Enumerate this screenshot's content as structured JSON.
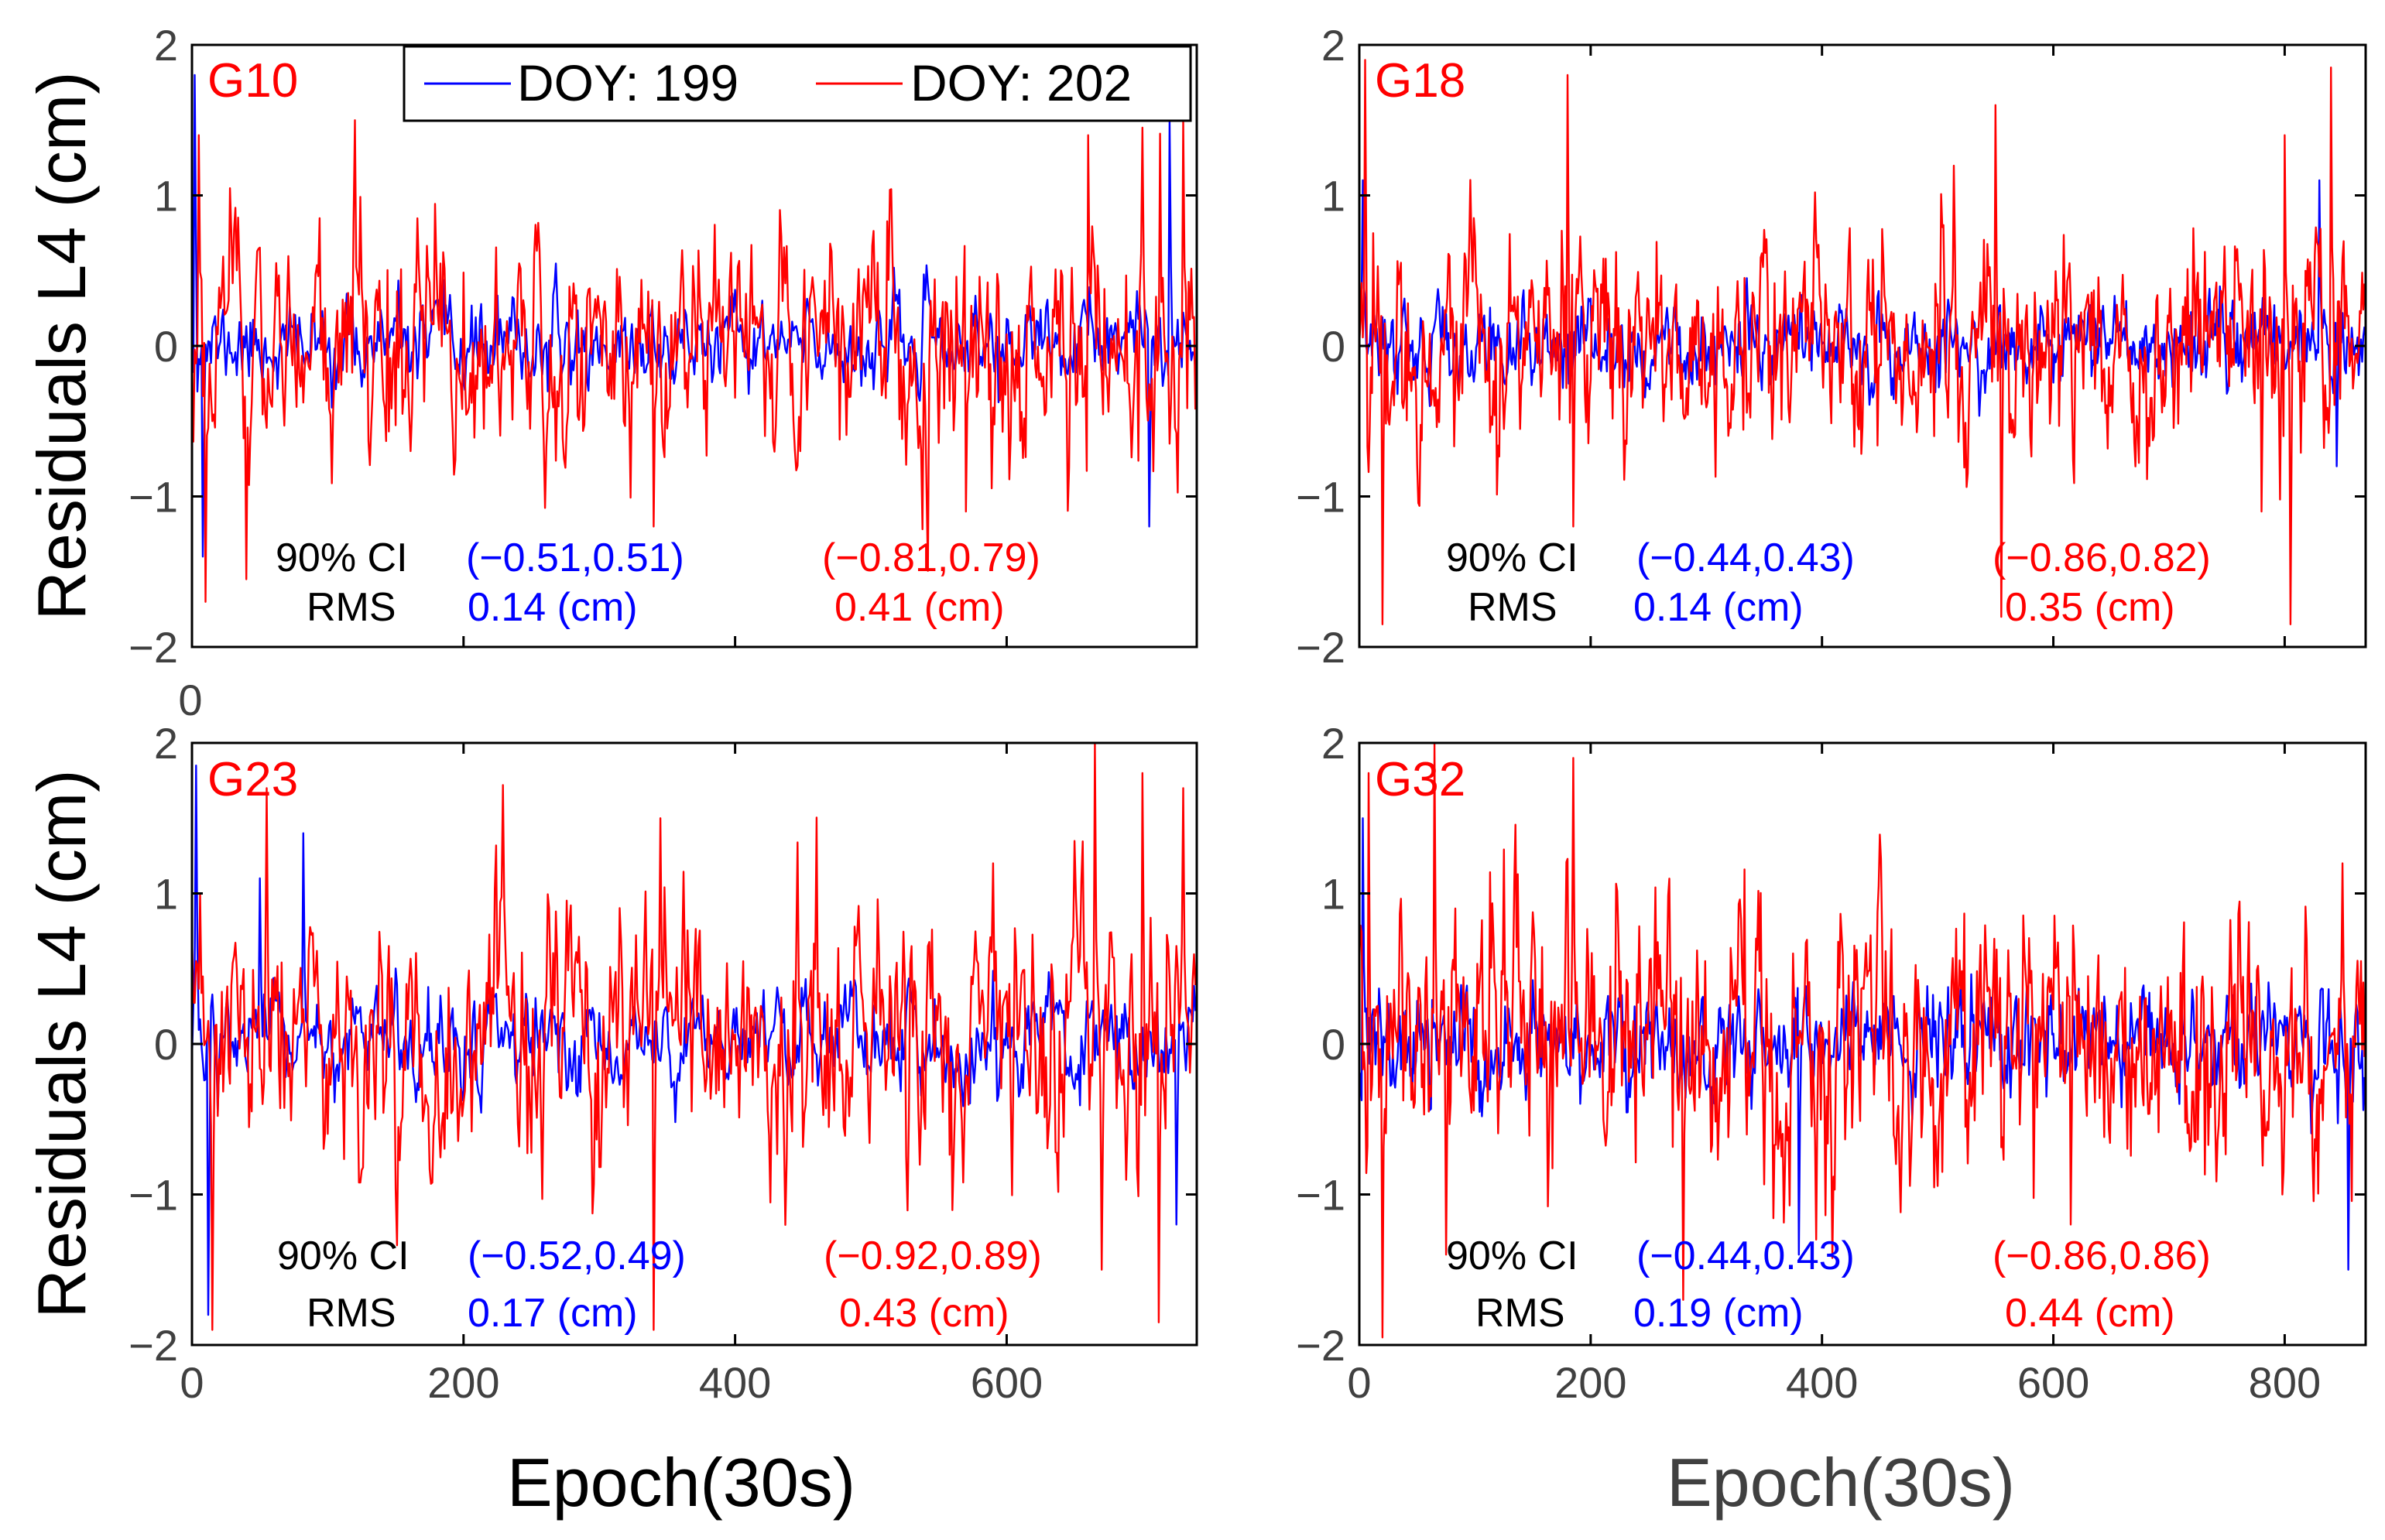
{
  "figure": {
    "legend": {
      "entries": [
        {
          "label": "DOY: 199",
          "color": "#0000ff"
        },
        {
          "label": "DOY: 202",
          "color": "#ff0000"
        }
      ]
    },
    "stray_tick_label": "0",
    "colors": {
      "doy199": "#0000ff",
      "doy202": "#ff0000",
      "text": "#000000",
      "axis_tick": "#404040",
      "label_red": "#ff0000"
    }
  },
  "chart_data": [
    {
      "type": "line",
      "satellite": "G10",
      "title": "G10",
      "xlabel": "",
      "ylabel": "Residuals L4 (cm)",
      "xlim": [
        0,
        740
      ],
      "ylim": [
        -2,
        2
      ],
      "xticks": [
        0,
        200,
        400,
        600
      ],
      "yticks": [
        -2,
        -1,
        0,
        1,
        2
      ],
      "ytick_labels": [
        "−2",
        "−1",
        "0",
        "1",
        "2"
      ],
      "xtick_labels": [],
      "series": [
        {
          "name": "DOY: 199",
          "color": "#0000ff",
          "n": 740,
          "seed": 11,
          "sigma": 0.14,
          "spikes": [
            [
              2,
              1.8
            ],
            [
              8,
              -1.4
            ],
            [
              705,
              -1.2
            ],
            [
              720,
              1.5
            ]
          ]
        },
        {
          "name": "DOY: 202",
          "color": "#ff0000",
          "n": 740,
          "seed": 21,
          "sigma": 0.41,
          "spikes": [
            [
              5,
              1.4
            ],
            [
              10,
              -1.7
            ],
            [
              40,
              -1.55
            ],
            [
              120,
              1.5
            ],
            [
              340,
              -1.2
            ],
            [
              570,
              -1.1
            ],
            [
              660,
              1.4
            ],
            [
              700,
              1.45
            ],
            [
              730,
              1.5
            ]
          ]
        }
      ],
      "stats": {
        "ci_label": "90% CI",
        "rms_label": "RMS",
        "ci_199": "(−0.51,0.51)",
        "rms_199": "0.14 (cm)",
        "ci_202": "(−0.81,0.79)",
        "rms_202": "0.41 (cm)"
      }
    },
    {
      "type": "line",
      "satellite": "G18",
      "title": "G18",
      "xlabel": "",
      "ylabel": "",
      "xlim": [
        0,
        870
      ],
      "ylim": [
        -2,
        2
      ],
      "xticks": [
        0,
        200,
        400,
        600,
        800
      ],
      "yticks": [
        -2,
        -1,
        0,
        1,
        2
      ],
      "ytick_labels": [
        "−2",
        "−1",
        "0",
        "1",
        "2"
      ],
      "xtick_labels": [],
      "series": [
        {
          "name": "DOY: 199",
          "color": "#0000ff",
          "n": 870,
          "seed": 12,
          "sigma": 0.14,
          "spikes": [
            [
              3,
              1.1
            ],
            [
              830,
              1.1
            ],
            [
              845,
              -0.8
            ]
          ]
        },
        {
          "name": "DOY: 202",
          "color": "#ff0000",
          "n": 870,
          "seed": 22,
          "sigma": 0.35,
          "spikes": [
            [
              5,
              1.9
            ],
            [
              20,
              -1.85
            ],
            [
              180,
              1.8
            ],
            [
              185,
              -1.2
            ],
            [
              550,
              1.6
            ],
            [
              555,
              -1.8
            ],
            [
              780,
              -1.1
            ],
            [
              800,
              1.4
            ],
            [
              805,
              -1.85
            ],
            [
              840,
              1.85
            ]
          ]
        }
      ],
      "stats": {
        "ci_label": "90% CI",
        "rms_label": "RMS",
        "ci_199": "(−0.44,0.43)",
        "rms_199": "0.14 (cm)",
        "ci_202": "(−0.86,0.82)",
        "rms_202": "0.35 (cm)"
      }
    },
    {
      "type": "line",
      "satellite": "G23",
      "title": "G23",
      "xlabel": "Epoch(30s)",
      "ylabel": "Residuals L4 (cm)",
      "xlim": [
        0,
        740
      ],
      "ylim": [
        -2,
        2
      ],
      "xticks": [
        0,
        200,
        400,
        600
      ],
      "yticks": [
        -2,
        -1,
        0,
        1,
        2
      ],
      "ytick_labels": [
        "−2",
        "−1",
        "0",
        "1",
        "2"
      ],
      "xtick_labels": [
        "0",
        "200",
        "400",
        "600"
      ],
      "series": [
        {
          "name": "DOY: 199",
          "color": "#0000ff",
          "n": 740,
          "seed": 13,
          "sigma": 0.17,
          "spikes": [
            [
              3,
              1.85
            ],
            [
              12,
              -1.8
            ],
            [
              50,
              1.1
            ],
            [
              82,
              1.4
            ],
            [
              725,
              -1.2
            ]
          ]
        },
        {
          "name": "DOY: 202",
          "color": "#ff0000",
          "n": 740,
          "seed": 23,
          "sigma": 0.43,
          "spikes": [
            [
              15,
              -1.9
            ],
            [
              55,
              1.7
            ],
            [
              340,
              -1.9
            ],
            [
              345,
              1.5
            ],
            [
              590,
              1.2
            ],
            [
              665,
              2.0
            ],
            [
              670,
              -1.5
            ],
            [
              700,
              1.8
            ],
            [
              712,
              -1.85
            ],
            [
              730,
              1.7
            ]
          ]
        }
      ],
      "stats": {
        "ci_label": "90% CI",
        "rms_label": "RMS",
        "ci_199": "(−0.52,0.49)",
        "rms_199": "0.17 (cm)",
        "ci_202": "(−0.92,0.89)",
        "rms_202": "0.43 (cm)"
      }
    },
    {
      "type": "line",
      "satellite": "G32",
      "title": "G32",
      "xlabel": "Epoch(30s)",
      "ylabel": "",
      "xlim": [
        0,
        870
      ],
      "ylim": [
        -2,
        2
      ],
      "xticks": [
        0,
        200,
        400,
        600,
        800
      ],
      "yticks": [
        -2,
        -1,
        0,
        1,
        2
      ],
      "ytick_labels": [
        "−2",
        "−1",
        "0",
        "1",
        "2"
      ],
      "xtick_labels": [
        "0",
        "200",
        "400",
        "600",
        "800"
      ],
      "series": [
        {
          "name": "DOY: 199",
          "color": "#0000ff",
          "n": 870,
          "seed": 14,
          "sigma": 0.19,
          "spikes": [
            [
              3,
              1.5
            ],
            [
              380,
              -1.4
            ],
            [
              855,
              -1.5
            ]
          ]
        },
        {
          "name": "DOY: 202",
          "color": "#ff0000",
          "n": 870,
          "seed": 24,
          "sigma": 0.44,
          "spikes": [
            [
              8,
              1.8
            ],
            [
              20,
              -1.95
            ],
            [
              65,
              2.0
            ],
            [
              75,
              -1.4
            ],
            [
              185,
              1.9
            ],
            [
              280,
              -1.7
            ],
            [
              395,
              -1.3
            ],
            [
              615,
              -1.2
            ],
            [
              850,
              1.2
            ]
          ]
        }
      ],
      "stats": {
        "ci_label": "90% CI",
        "rms_label": "RMS",
        "ci_199": "(−0.44,0.43)",
        "rms_199": "0.19 (cm)",
        "ci_202": "(−0.86,0.86)",
        "rms_202": "0.44 (cm)"
      }
    }
  ]
}
